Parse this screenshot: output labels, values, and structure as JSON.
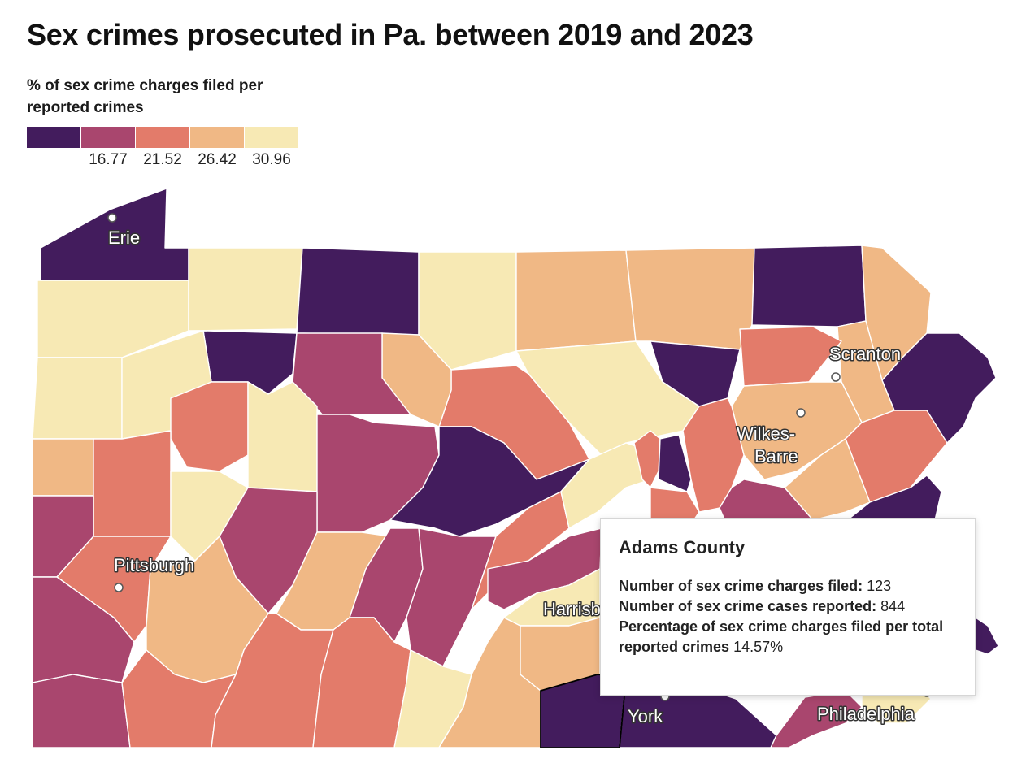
{
  "title": "Sex crimes prosecuted in Pa. between 2019 and 2023",
  "legend": {
    "title": "% of sex crime charges filed per reported crimes",
    "colors": [
      "#431c5d",
      "#a9466e",
      "#e37b6a",
      "#f0b885",
      "#f7e9b4"
    ],
    "thresholds": [
      "16.77",
      "21.52",
      "26.42",
      "30.96"
    ]
  },
  "cities": [
    "Erie",
    "Scranton",
    "Wilkes-Barre",
    "Pittsburgh",
    "Harrisburg",
    "York",
    "Philadelphia"
  ],
  "tooltip": {
    "county": "Adams County",
    "charges_label": "Number of sex crime charges filed:",
    "charges_value": "123",
    "cases_label": "Number of sex crime cases reported:",
    "cases_value": "844",
    "pct_label": "Percentage of sex crime charges filed per total reported crimes",
    "pct_value": "14.57%"
  }
}
